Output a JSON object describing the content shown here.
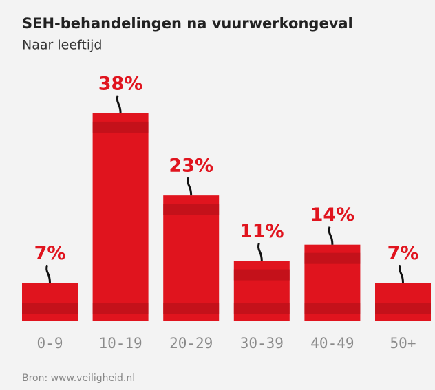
{
  "chart_data": {
    "type": "bar",
    "title": "SEH-behandelingen na vuurwerkongeval",
    "subtitle": "Naar leeftijd",
    "categories": [
      "0-9",
      "10-19",
      "20-29",
      "30-39",
      "40-49",
      "50+"
    ],
    "values": [
      7,
      38,
      23,
      11,
      14,
      7
    ],
    "value_labels": [
      "7%",
      "38%",
      "23%",
      "11%",
      "14%",
      "7%"
    ],
    "color": "#e0141e",
    "source": "Bron: www.veiligheid.nl"
  }
}
